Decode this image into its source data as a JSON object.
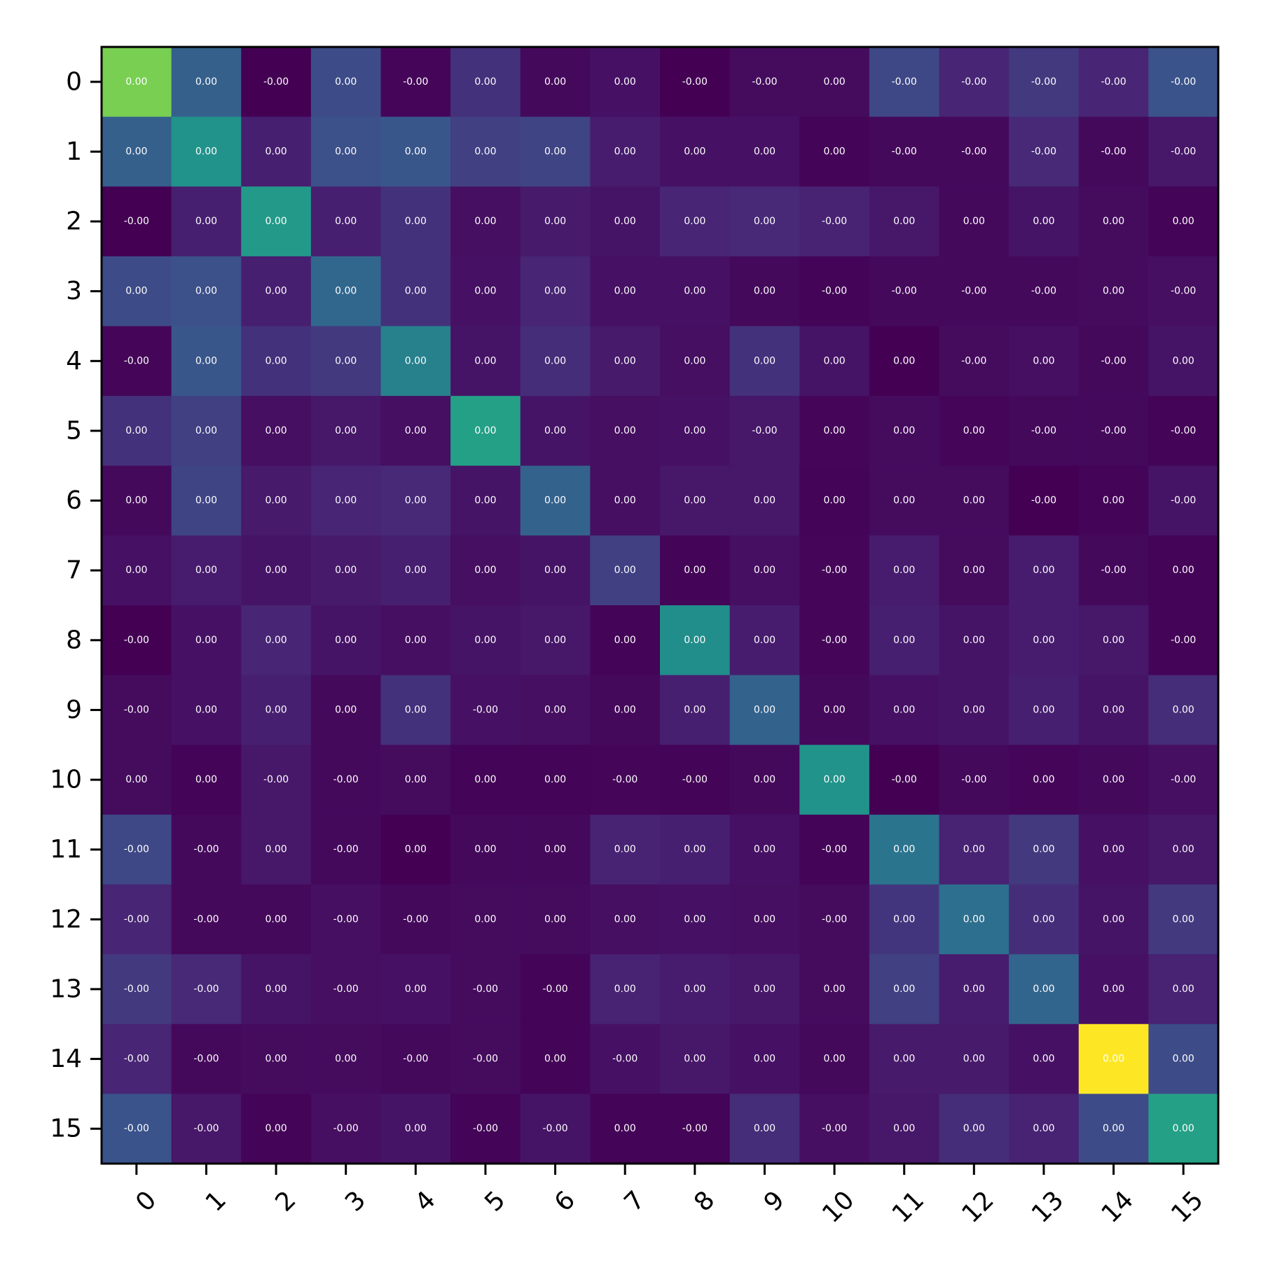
{
  "chart_data": {
    "type": "heatmap",
    "title": "",
    "xlabel": "",
    "ylabel": "",
    "colormap": "viridis",
    "color_range": [
      0.02,
      1.0
    ],
    "grid": false,
    "x_categories": [
      "0",
      "1",
      "2",
      "3",
      "4",
      "5",
      "6",
      "7",
      "8",
      "9",
      "10",
      "11",
      "12",
      "13",
      "14",
      "15"
    ],
    "y_categories": [
      "0",
      "1",
      "2",
      "3",
      "4",
      "5",
      "6",
      "7",
      "8",
      "9",
      "10",
      "11",
      "12",
      "13",
      "14",
      "15"
    ],
    "values": [
      [
        0.8,
        0.32,
        0.01,
        0.25,
        0.04,
        0.18,
        0.05,
        0.08,
        0.02,
        0.06,
        0.06,
        0.24,
        0.15,
        0.2,
        0.15,
        0.27
      ],
      [
        0.32,
        0.52,
        0.13,
        0.26,
        0.28,
        0.22,
        0.23,
        0.12,
        0.08,
        0.08,
        0.03,
        0.05,
        0.05,
        0.16,
        0.05,
        0.1
      ],
      [
        0.01,
        0.13,
        0.55,
        0.13,
        0.18,
        0.07,
        0.11,
        0.09,
        0.15,
        0.16,
        0.14,
        0.1,
        0.05,
        0.09,
        0.06,
        0.03
      ],
      [
        0.25,
        0.26,
        0.13,
        0.35,
        0.18,
        0.08,
        0.15,
        0.08,
        0.08,
        0.05,
        0.03,
        0.05,
        0.05,
        0.05,
        0.06,
        0.07
      ],
      [
        0.04,
        0.28,
        0.18,
        0.2,
        0.45,
        0.09,
        0.17,
        0.11,
        0.07,
        0.18,
        0.09,
        0.02,
        0.06,
        0.07,
        0.05,
        0.09
      ],
      [
        0.18,
        0.22,
        0.07,
        0.1,
        0.07,
        0.58,
        0.09,
        0.07,
        0.08,
        0.1,
        0.04,
        0.06,
        0.04,
        0.05,
        0.05,
        0.03
      ],
      [
        0.05,
        0.23,
        0.11,
        0.15,
        0.16,
        0.09,
        0.33,
        0.07,
        0.1,
        0.1,
        0.03,
        0.06,
        0.06,
        0.01,
        0.03,
        0.09
      ],
      [
        0.08,
        0.12,
        0.09,
        0.11,
        0.13,
        0.07,
        0.09,
        0.22,
        0.03,
        0.07,
        0.04,
        0.12,
        0.06,
        0.12,
        0.05,
        0.03
      ],
      [
        0.02,
        0.08,
        0.15,
        0.09,
        0.07,
        0.09,
        0.1,
        0.03,
        0.5,
        0.12,
        0.04,
        0.13,
        0.09,
        0.12,
        0.1,
        0.03
      ],
      [
        0.06,
        0.08,
        0.13,
        0.05,
        0.18,
        0.08,
        0.07,
        0.05,
        0.13,
        0.33,
        0.05,
        0.08,
        0.09,
        0.13,
        0.09,
        0.17
      ],
      [
        0.06,
        0.03,
        0.1,
        0.05,
        0.06,
        0.03,
        0.03,
        0.04,
        0.03,
        0.05,
        0.52,
        0.02,
        0.05,
        0.04,
        0.05,
        0.07
      ],
      [
        0.24,
        0.05,
        0.1,
        0.05,
        0.02,
        0.05,
        0.05,
        0.14,
        0.13,
        0.08,
        0.03,
        0.4,
        0.14,
        0.2,
        0.08,
        0.1
      ],
      [
        0.15,
        0.05,
        0.05,
        0.07,
        0.05,
        0.06,
        0.06,
        0.07,
        0.08,
        0.07,
        0.06,
        0.19,
        0.38,
        0.17,
        0.09,
        0.2
      ],
      [
        0.2,
        0.16,
        0.09,
        0.07,
        0.08,
        0.06,
        0.03,
        0.14,
        0.12,
        0.1,
        0.06,
        0.22,
        0.12,
        0.34,
        0.08,
        0.14
      ],
      [
        0.15,
        0.05,
        0.06,
        0.06,
        0.05,
        0.06,
        0.03,
        0.08,
        0.1,
        0.08,
        0.05,
        0.11,
        0.11,
        0.08,
        1.0,
        0.25
      ],
      [
        0.27,
        0.1,
        0.03,
        0.07,
        0.09,
        0.03,
        0.09,
        0.03,
        0.03,
        0.17,
        0.07,
        0.1,
        0.17,
        0.14,
        0.25,
        0.58
      ]
    ],
    "cell_labels": [
      [
        "0.00",
        "0.00",
        "-0.00",
        "0.00",
        "-0.00",
        "0.00",
        "0.00",
        "0.00",
        "-0.00",
        "-0.00",
        "0.00",
        "-0.00",
        "-0.00",
        "-0.00",
        "-0.00",
        "-0.00"
      ],
      [
        "0.00",
        "0.00",
        "0.00",
        "0.00",
        "0.00",
        "0.00",
        "0.00",
        "0.00",
        "0.00",
        "0.00",
        "0.00",
        "-0.00",
        "-0.00",
        "-0.00",
        "-0.00",
        "-0.00"
      ],
      [
        "-0.00",
        "0.00",
        "0.00",
        "0.00",
        "0.00",
        "0.00",
        "0.00",
        "0.00",
        "0.00",
        "0.00",
        "-0.00",
        "0.00",
        "0.00",
        "0.00",
        "0.00",
        "0.00"
      ],
      [
        "0.00",
        "0.00",
        "0.00",
        "0.00",
        "0.00",
        "0.00",
        "0.00",
        "0.00",
        "0.00",
        "0.00",
        "-0.00",
        "-0.00",
        "-0.00",
        "-0.00",
        "0.00",
        "-0.00"
      ],
      [
        "-0.00",
        "0.00",
        "0.00",
        "0.00",
        "0.00",
        "0.00",
        "0.00",
        "0.00",
        "0.00",
        "0.00",
        "0.00",
        "0.00",
        "-0.00",
        "0.00",
        "-0.00",
        "0.00"
      ],
      [
        "0.00",
        "0.00",
        "0.00",
        "0.00",
        "0.00",
        "0.00",
        "0.00",
        "0.00",
        "0.00",
        "-0.00",
        "0.00",
        "0.00",
        "0.00",
        "-0.00",
        "-0.00",
        "-0.00"
      ],
      [
        "0.00",
        "0.00",
        "0.00",
        "0.00",
        "0.00",
        "0.00",
        "0.00",
        "0.00",
        "0.00",
        "0.00",
        "0.00",
        "0.00",
        "0.00",
        "-0.00",
        "0.00",
        "-0.00"
      ],
      [
        "0.00",
        "0.00",
        "0.00",
        "0.00",
        "0.00",
        "0.00",
        "0.00",
        "0.00",
        "0.00",
        "0.00",
        "-0.00",
        "0.00",
        "0.00",
        "0.00",
        "-0.00",
        "0.00"
      ],
      [
        "-0.00",
        "0.00",
        "0.00",
        "0.00",
        "0.00",
        "0.00",
        "0.00",
        "0.00",
        "0.00",
        "0.00",
        "-0.00",
        "0.00",
        "0.00",
        "0.00",
        "0.00",
        "-0.00"
      ],
      [
        "-0.00",
        "0.00",
        "0.00",
        "0.00",
        "0.00",
        "-0.00",
        "0.00",
        "0.00",
        "0.00",
        "0.00",
        "0.00",
        "0.00",
        "0.00",
        "0.00",
        "0.00",
        "0.00"
      ],
      [
        "0.00",
        "0.00",
        "-0.00",
        "-0.00",
        "0.00",
        "0.00",
        "0.00",
        "-0.00",
        "-0.00",
        "0.00",
        "0.00",
        "-0.00",
        "-0.00",
        "0.00",
        "0.00",
        "-0.00"
      ],
      [
        "-0.00",
        "-0.00",
        "0.00",
        "-0.00",
        "0.00",
        "0.00",
        "0.00",
        "0.00",
        "0.00",
        "0.00",
        "-0.00",
        "0.00",
        "0.00",
        "0.00",
        "0.00",
        "0.00"
      ],
      [
        "-0.00",
        "-0.00",
        "0.00",
        "-0.00",
        "-0.00",
        "0.00",
        "0.00",
        "0.00",
        "0.00",
        "0.00",
        "-0.00",
        "0.00",
        "0.00",
        "0.00",
        "0.00",
        "0.00"
      ],
      [
        "-0.00",
        "-0.00",
        "0.00",
        "-0.00",
        "0.00",
        "-0.00",
        "-0.00",
        "0.00",
        "0.00",
        "0.00",
        "0.00",
        "0.00",
        "0.00",
        "0.00",
        "0.00",
        "0.00"
      ],
      [
        "-0.00",
        "-0.00",
        "0.00",
        "0.00",
        "-0.00",
        "-0.00",
        "0.00",
        "-0.00",
        "0.00",
        "0.00",
        "0.00",
        "0.00",
        "0.00",
        "0.00",
        "0.00",
        "0.00"
      ],
      [
        "-0.00",
        "-0.00",
        "0.00",
        "-0.00",
        "0.00",
        "-0.00",
        "-0.00",
        "0.00",
        "-0.00",
        "0.00",
        "-0.00",
        "0.00",
        "0.00",
        "0.00",
        "0.00",
        "0.00"
      ]
    ]
  }
}
